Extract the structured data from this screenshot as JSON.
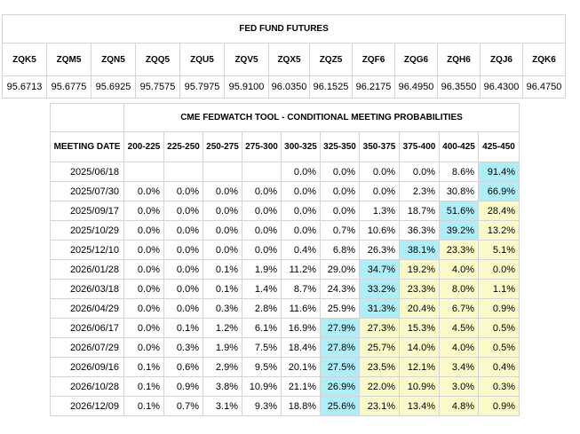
{
  "futures": {
    "title": "FED FUND FUTURES",
    "contracts": [
      "ZQK5",
      "ZQM5",
      "ZQN5",
      "ZQQ5",
      "ZQU5",
      "ZQV5",
      "ZQX5",
      "ZQZ5",
      "ZQF6",
      "ZQG6",
      "ZQH6",
      "ZQJ6",
      "ZQK6"
    ],
    "prices": [
      "95.6713",
      "95.6775",
      "95.6925",
      "95.7575",
      "95.7975",
      "95.9100",
      "96.0350",
      "96.1525",
      "96.2175",
      "96.4950",
      "96.3550",
      "96.4300",
      "96.4750"
    ]
  },
  "fedwatch": {
    "title": "CME FEDWATCH TOOL - CONDITIONAL MEETING PROBABILITIES",
    "date_header": "MEETING DATE",
    "ranges": [
      "200-225",
      "225-250",
      "250-275",
      "275-300",
      "300-325",
      "325-350",
      "350-375",
      "375-400",
      "400-425",
      "425-450"
    ],
    "colors": {
      "max": "#aeeef8",
      "high": "#fafac8"
    },
    "rows": [
      {
        "date": "2025/06/18",
        "values": [
          "",
          "",
          "",
          "",
          "0.0%",
          "0.0%",
          "0.0%",
          "0.0%",
          "8.6%",
          "91.4%"
        ],
        "max": 9,
        "high": []
      },
      {
        "date": "2025/07/30",
        "values": [
          "0.0%",
          "0.0%",
          "0.0%",
          "0.0%",
          "0.0%",
          "0.0%",
          "0.0%",
          "2.3%",
          "30.8%",
          "66.9%"
        ],
        "max": 9,
        "high": []
      },
      {
        "date": "2025/09/17",
        "values": [
          "0.0%",
          "0.0%",
          "0.0%",
          "0.0%",
          "0.0%",
          "0.0%",
          "1.3%",
          "18.7%",
          "51.6%",
          "28.4%"
        ],
        "max": 8,
        "high": [
          9
        ]
      },
      {
        "date": "2025/10/29",
        "values": [
          "0.0%",
          "0.0%",
          "0.0%",
          "0.0%",
          "0.0%",
          "0.7%",
          "10.6%",
          "36.3%",
          "39.2%",
          "13.2%"
        ],
        "max": 8,
        "high": [
          9
        ]
      },
      {
        "date": "2025/12/10",
        "values": [
          "0.0%",
          "0.0%",
          "0.0%",
          "0.0%",
          "0.4%",
          "6.8%",
          "26.3%",
          "38.1%",
          "23.3%",
          "5.1%"
        ],
        "max": 7,
        "high": [
          8,
          9
        ]
      },
      {
        "date": "2026/01/28",
        "values": [
          "0.0%",
          "0.0%",
          "0.1%",
          "1.9%",
          "11.2%",
          "29.0%",
          "34.7%",
          "19.2%",
          "4.0%",
          "0.0%"
        ],
        "max": 6,
        "high": [
          7,
          8,
          9
        ]
      },
      {
        "date": "2026/03/18",
        "values": [
          "0.0%",
          "0.0%",
          "0.1%",
          "1.4%",
          "8.7%",
          "24.3%",
          "33.2%",
          "23.3%",
          "8.0%",
          "1.1%"
        ],
        "max": 6,
        "high": [
          7,
          8,
          9
        ]
      },
      {
        "date": "2026/04/29",
        "values": [
          "0.0%",
          "0.0%",
          "0.3%",
          "2.8%",
          "11.6%",
          "25.9%",
          "31.3%",
          "20.4%",
          "6.7%",
          "0.9%"
        ],
        "max": 6,
        "high": [
          7,
          8,
          9
        ]
      },
      {
        "date": "2026/06/17",
        "values": [
          "0.0%",
          "0.1%",
          "1.2%",
          "6.1%",
          "16.9%",
          "27.9%",
          "27.3%",
          "15.3%",
          "4.5%",
          "0.5%"
        ],
        "max": 5,
        "high": [
          6,
          7,
          8,
          9
        ]
      },
      {
        "date": "2026/07/29",
        "values": [
          "0.0%",
          "0.3%",
          "1.9%",
          "7.5%",
          "18.4%",
          "27.8%",
          "25.7%",
          "14.0%",
          "4.0%",
          "0.5%"
        ],
        "max": 5,
        "high": [
          6,
          7,
          8,
          9
        ]
      },
      {
        "date": "2026/09/16",
        "values": [
          "0.1%",
          "0.6%",
          "2.9%",
          "9.5%",
          "20.1%",
          "27.5%",
          "23.5%",
          "12.1%",
          "3.4%",
          "0.4%"
        ],
        "max": 5,
        "high": [
          6,
          7,
          8,
          9
        ]
      },
      {
        "date": "2026/10/28",
        "values": [
          "0.1%",
          "0.9%",
          "3.8%",
          "10.9%",
          "21.1%",
          "26.9%",
          "22.0%",
          "10.9%",
          "3.0%",
          "0.3%"
        ],
        "max": 5,
        "high": [
          6,
          7,
          8,
          9
        ]
      },
      {
        "date": "2026/12/09",
        "values": [
          "0.1%",
          "0.7%",
          "3.1%",
          "9.3%",
          "18.8%",
          "25.6%",
          "23.1%",
          "13.4%",
          "4.8%",
          "0.9%"
        ],
        "max": 5,
        "high": [
          6,
          7,
          8,
          9
        ]
      }
    ]
  }
}
